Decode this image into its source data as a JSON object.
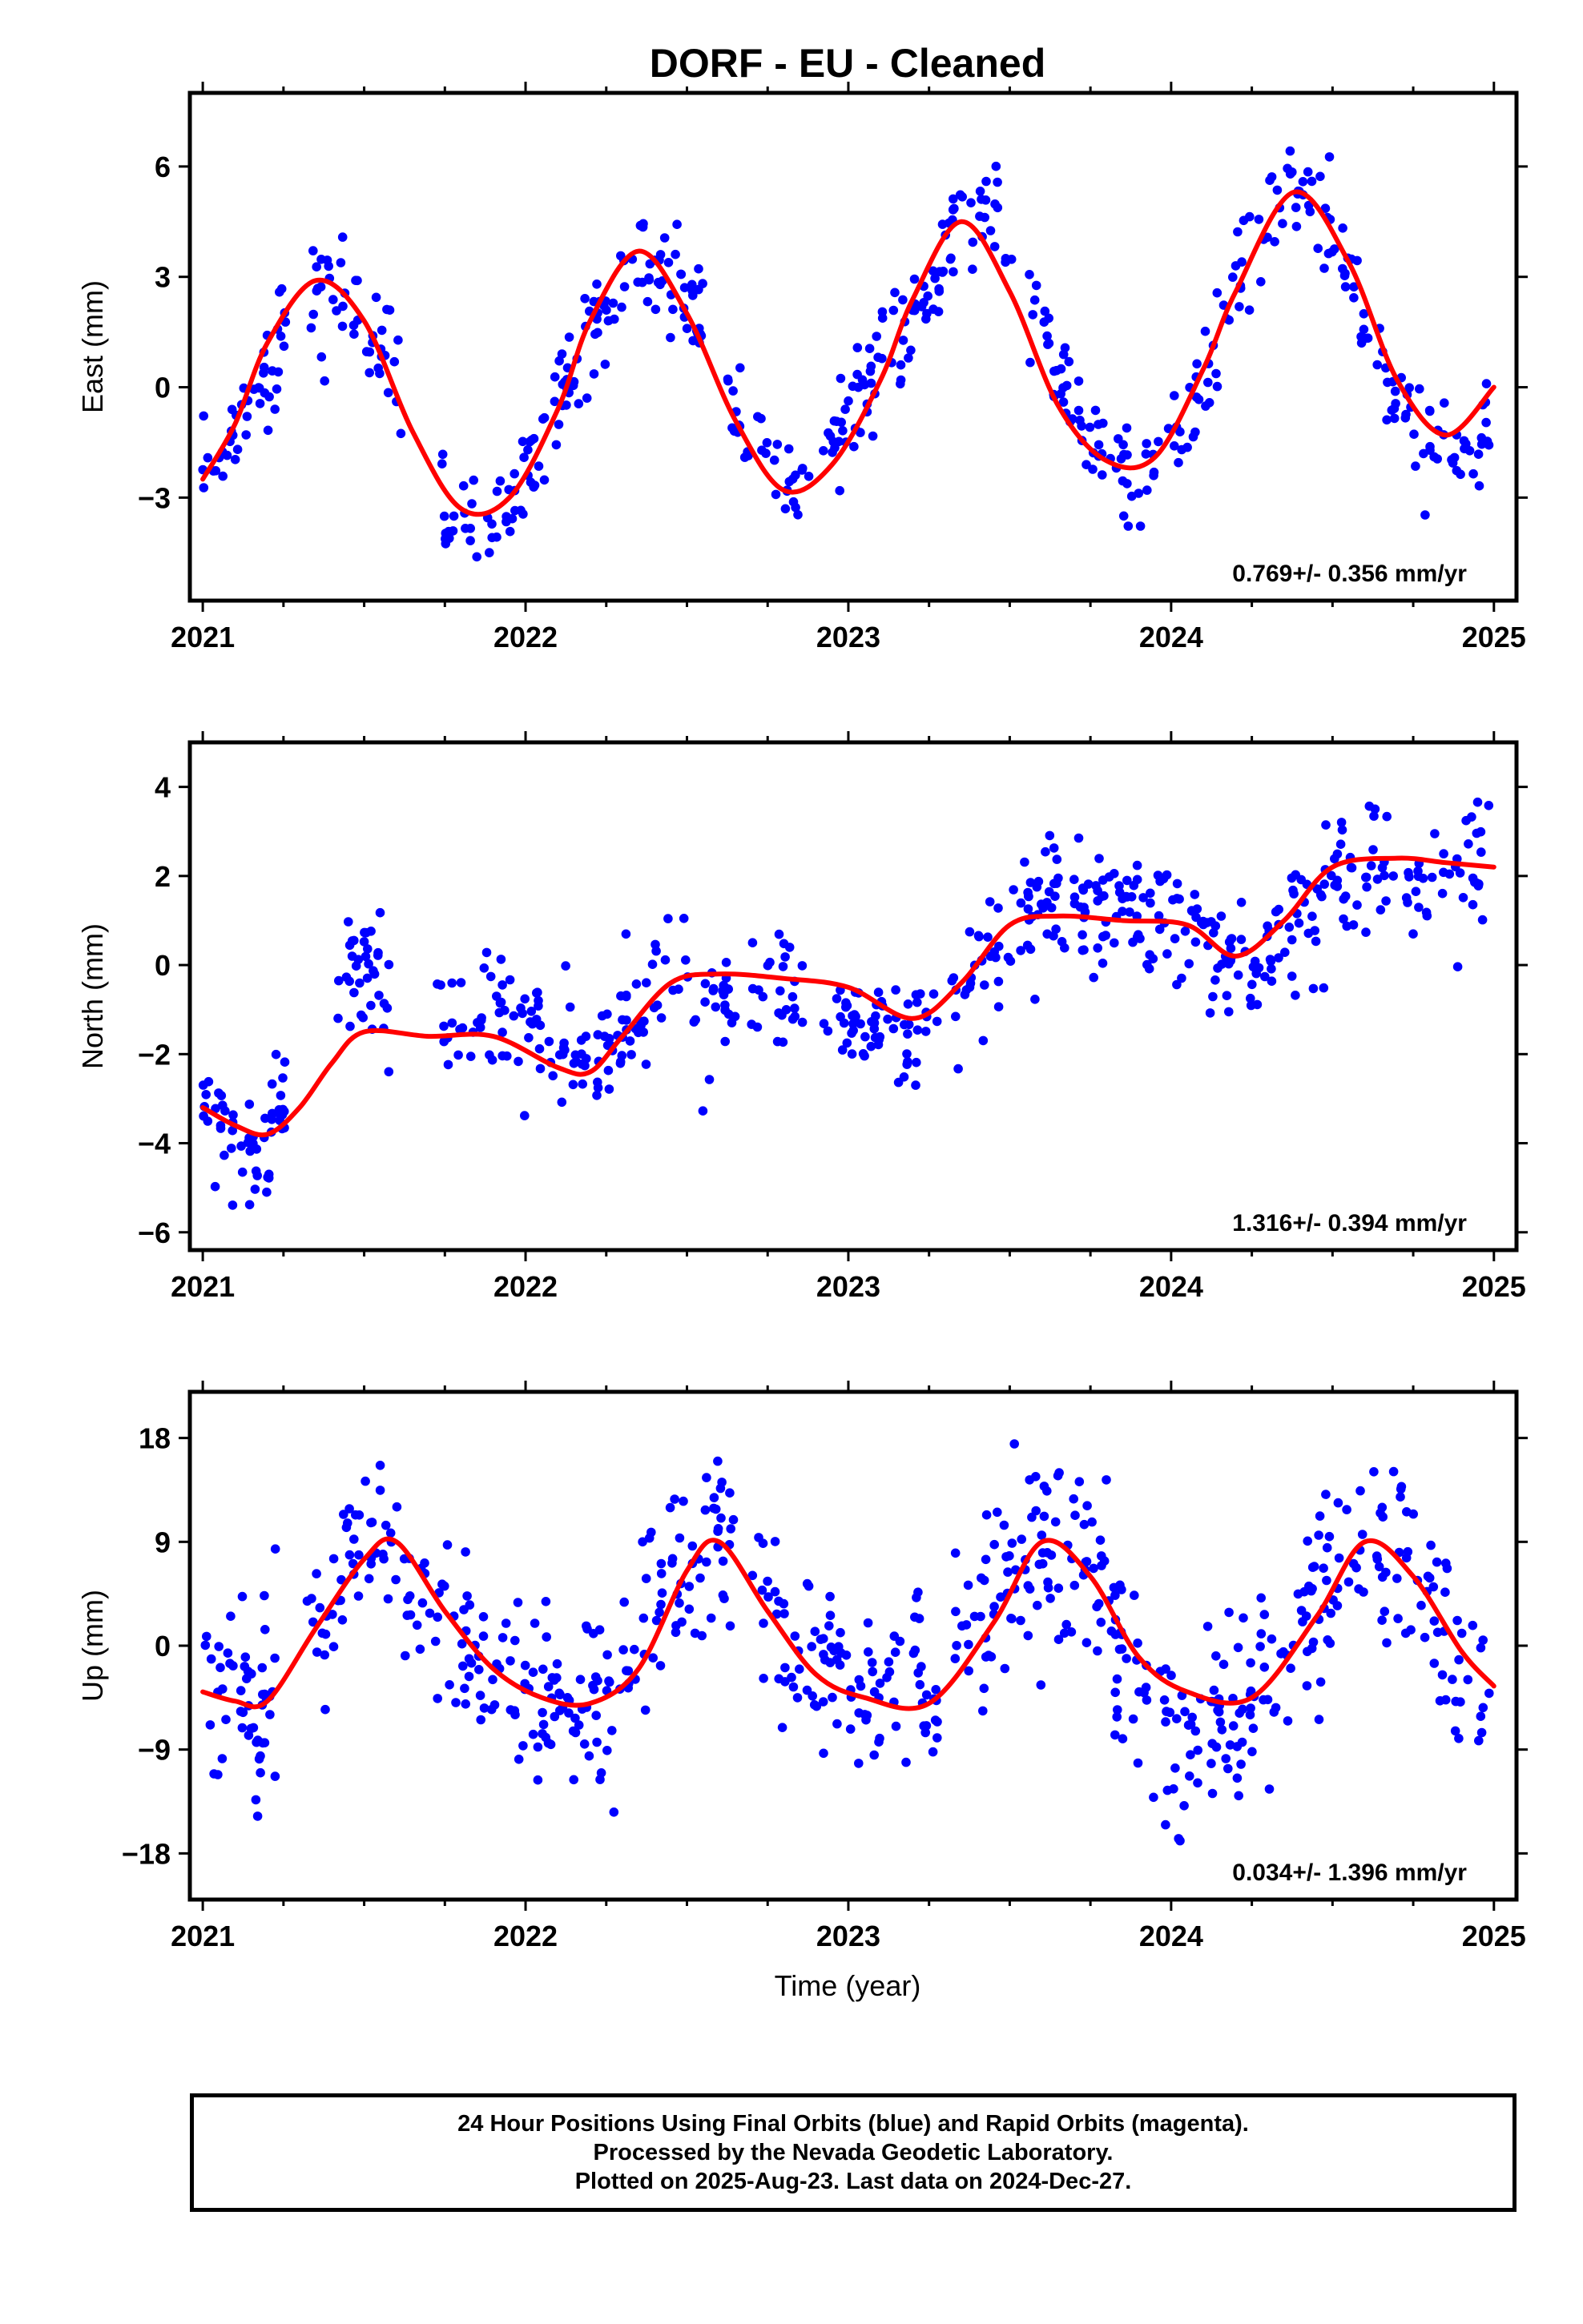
{
  "title": "DORF  - EU - Cleaned",
  "xlabel": "Time (year)",
  "colors": {
    "points": "#0000ff",
    "fit": "#ff0000",
    "frame": "#000000"
  },
  "footer": {
    "lines": [
      "24 Hour Positions Using Final Orbits (blue) and Rapid Orbits (magenta).",
      "Processed by the Nevada Geodetic Laboratory.",
      "Plotted on 2025-Aug-23. Last data on 2024-Dec-27."
    ]
  },
  "chart_data": [
    {
      "type": "scatter",
      "name": "east",
      "ylabel": "East (mm)",
      "rate_label": "0.769+/- 0.356 mm/yr",
      "xlim": [
        2020.96,
        2025.07
      ],
      "ylim": [
        -5.8,
        8.0
      ],
      "xticks": [
        2021,
        2022,
        2023,
        2024,
        2025
      ],
      "xtick_labels": [
        "2021",
        "2022",
        "2023",
        "2024",
        "2025"
      ],
      "yticks": [
        -3,
        0,
        3,
        6
      ],
      "ytick_labels": [
        "−3",
        "0",
        "3",
        "6"
      ],
      "fit": {
        "x": [
          2021.0,
          2021.1,
          2021.2,
          2021.35,
          2021.5,
          2021.65,
          2021.8,
          2021.95,
          2022.1,
          2022.2,
          2022.35,
          2022.5,
          2022.65,
          2022.8,
          2022.95,
          2023.1,
          2023.2,
          2023.35,
          2023.5,
          2023.65,
          2023.8,
          2023.95,
          2024.1,
          2024.2,
          2024.38,
          2024.55,
          2024.7,
          2024.85,
          2025.0
        ],
        "y": [
          -2.5,
          -1.0,
          1.2,
          2.9,
          1.8,
          -1.2,
          -3.3,
          -3.0,
          -0.6,
          1.8,
          3.7,
          2.0,
          -0.9,
          -2.8,
          -2.1,
          0.2,
          2.4,
          4.5,
          2.6,
          -0.5,
          -2.0,
          -1.9,
          0.5,
          2.6,
          5.3,
          3.4,
          0.2,
          -1.3,
          0.0
        ]
      },
      "scatter": {
        "anchors_x": [
          2021.0,
          2021.15,
          2021.3,
          2021.45,
          2021.6,
          2021.7,
          2021.8,
          2021.85,
          2021.95,
          2022.0,
          2022.1,
          2022.25,
          2022.4,
          2022.5,
          2022.6,
          2022.7,
          2022.8,
          2022.85,
          2022.95,
          2023.0,
          2023.15,
          2023.25,
          2023.35,
          2023.45,
          2023.55,
          2023.7,
          2023.8,
          2023.9,
          2024.0,
          2024.1,
          2024.2,
          2024.3,
          2024.4,
          2024.5,
          2024.6,
          2024.7,
          2024.8,
          2024.9,
          2025.0
        ],
        "anchors_y": [
          -2.3,
          -0.6,
          2.6,
          2.5,
          0.3,
          -2.5,
          -3.5,
          -3.9,
          -3.0,
          -2.2,
          -0.3,
          2.4,
          3.5,
          2.5,
          0.8,
          -1.5,
          -2.6,
          -2.8,
          -1.6,
          -0.5,
          1.0,
          2.5,
          4.4,
          4.5,
          2.6,
          -0.5,
          -2.2,
          -2.2,
          -1.6,
          -0.5,
          2.5,
          4.2,
          5.6,
          4.0,
          2.0,
          -0.2,
          -1.8,
          -1.8,
          -0.6
        ],
        "gaps": [
          [
            2021.26,
            2021.33
          ],
          [
            2021.62,
            2021.74
          ],
          [
            2022.55,
            2022.62
          ],
          [
            2022.88,
            2022.92
          ],
          [
            2023.52,
            2023.56
          ]
        ],
        "n": 560,
        "spread": 0.75,
        "seed": 11
      }
    },
    {
      "type": "scatter",
      "name": "north",
      "ylabel": "North (mm)",
      "rate_label": "1.316+/- 0.394 mm/yr",
      "xlim": [
        2020.96,
        2025.07
      ],
      "ylim": [
        -6.4,
        5.0
      ],
      "xticks": [
        2021,
        2022,
        2023,
        2024,
        2025
      ],
      "xtick_labels": [
        "2021",
        "2022",
        "2023",
        "2024",
        "2025"
      ],
      "yticks": [
        -6,
        -4,
        -2,
        0,
        2,
        4
      ],
      "ytick_labels": [
        "−6",
        "−4",
        "−2",
        "0",
        "2",
        "4"
      ],
      "fit": {
        "x": [
          2021.0,
          2021.1,
          2021.2,
          2021.3,
          2021.4,
          2021.5,
          2021.7,
          2021.9,
          2022.1,
          2022.2,
          2022.3,
          2022.45,
          2022.6,
          2022.8,
          2023.0,
          2023.2,
          2023.35,
          2023.5,
          2023.65,
          2023.85,
          2024.05,
          2024.2,
          2024.35,
          2024.5,
          2024.7,
          2024.85,
          2025.0
        ],
        "y": [
          -3.2,
          -3.6,
          -3.8,
          -3.2,
          -2.2,
          -1.5,
          -1.6,
          -1.6,
          -2.3,
          -2.4,
          -1.6,
          -0.4,
          -0.2,
          -0.3,
          -0.5,
          -1.2,
          -0.4,
          0.9,
          1.1,
          1.0,
          0.9,
          0.2,
          1.0,
          2.2,
          2.4,
          2.3,
          2.2
        ]
      },
      "scatter": {
        "anchors_x": [
          2021.0,
          2021.1,
          2021.2,
          2021.35,
          2021.5,
          2021.6,
          2021.75,
          2021.9,
          2022.05,
          2022.2,
          2022.3,
          2022.45,
          2022.6,
          2022.75,
          2022.9,
          2023.05,
          2023.2,
          2023.35,
          2023.5,
          2023.65,
          2023.8,
          2023.95,
          2024.1,
          2024.25,
          2024.4,
          2024.55,
          2024.7,
          2024.85,
          2025.0
        ],
        "anchors_y": [
          -3.0,
          -4.3,
          -4.0,
          -1.0,
          0.2,
          -1.3,
          -1.0,
          -1.0,
          -1.5,
          -2.0,
          -1.6,
          -0.2,
          -1.0,
          -0.3,
          -0.8,
          -1.5,
          -1.6,
          -0.5,
          0.8,
          1.4,
          1.4,
          1.2,
          0.8,
          0.0,
          1.2,
          2.0,
          1.8,
          2.0,
          2.0
        ],
        "gaps": [
          [
            2021.26,
            2021.41
          ],
          [
            2021.58,
            2021.72
          ],
          [
            2022.65,
            2022.7
          ],
          [
            2022.86,
            2022.92
          ],
          [
            2023.28,
            2023.32
          ]
        ],
        "n": 620,
        "spread": 0.7,
        "seed": 23
      }
    },
    {
      "type": "scatter",
      "name": "up",
      "ylabel": "Up (mm)",
      "rate_label": "0.034+/- 1.396 mm/yr",
      "xlim": [
        2020.96,
        2025.07
      ],
      "ylim": [
        -22.0,
        22.0
      ],
      "xticks": [
        2021,
        2022,
        2023,
        2024,
        2025
      ],
      "xtick_labels": [
        "2021",
        "2022",
        "2023",
        "2024",
        "2025"
      ],
      "yticks": [
        -18,
        -9,
        0,
        9,
        18
      ],
      "ytick_labels": [
        "−18",
        "−9",
        "0",
        "9",
        "18"
      ],
      "fit": {
        "x": [
          2021.0,
          2021.1,
          2021.2,
          2021.35,
          2021.5,
          2021.6,
          2021.75,
          2021.9,
          2022.05,
          2022.2,
          2022.35,
          2022.5,
          2022.6,
          2022.75,
          2022.9,
          2023.05,
          2023.25,
          2023.45,
          2023.6,
          2023.75,
          2023.9,
          2024.05,
          2024.25,
          2024.45,
          2024.6,
          2024.75,
          2024.9,
          2025.0
        ],
        "y": [
          -4.0,
          -4.8,
          -4.8,
          1.5,
          7.5,
          9.0,
          3.0,
          -2.0,
          -4.5,
          -5.0,
          -2.0,
          6.5,
          9.0,
          3.0,
          -2.5,
          -4.5,
          -5.0,
          2.0,
          9.0,
          6.0,
          -1.0,
          -4.0,
          -4.5,
          2.5,
          9.0,
          6.0,
          -0.5,
          -3.5
        ]
      },
      "scatter": {
        "anchors_x": [
          2021.0,
          2021.1,
          2021.2,
          2021.4,
          2021.5,
          2021.6,
          2021.75,
          2021.9,
          2022.05,
          2022.2,
          2022.35,
          2022.5,
          2022.6,
          2022.75,
          2022.9,
          2023.05,
          2023.25,
          2023.45,
          2023.6,
          2023.75,
          2023.9,
          2024.05,
          2024.25,
          2024.45,
          2024.6,
          2024.75,
          2024.9,
          2025.0
        ],
        "anchors_y": [
          -4.0,
          -4.0,
          -5.5,
          4.0,
          9.0,
          7.0,
          1.0,
          -2.0,
          -5.0,
          -4.5,
          -0.5,
          9.0,
          9.5,
          4.0,
          -2.0,
          -5.0,
          -4.0,
          4.5,
          9.0,
          6.0,
          -4.0,
          -9.0,
          -4.5,
          3.5,
          9.5,
          6.5,
          -4.0,
          -5.5
        ],
        "gaps": [
          [
            2021.23,
            2021.32
          ],
          [
            2022.65,
            2022.7
          ],
          [
            2023.28,
            2023.33
          ]
        ],
        "n": 700,
        "spread": 4.2,
        "seed": 37
      }
    }
  ]
}
